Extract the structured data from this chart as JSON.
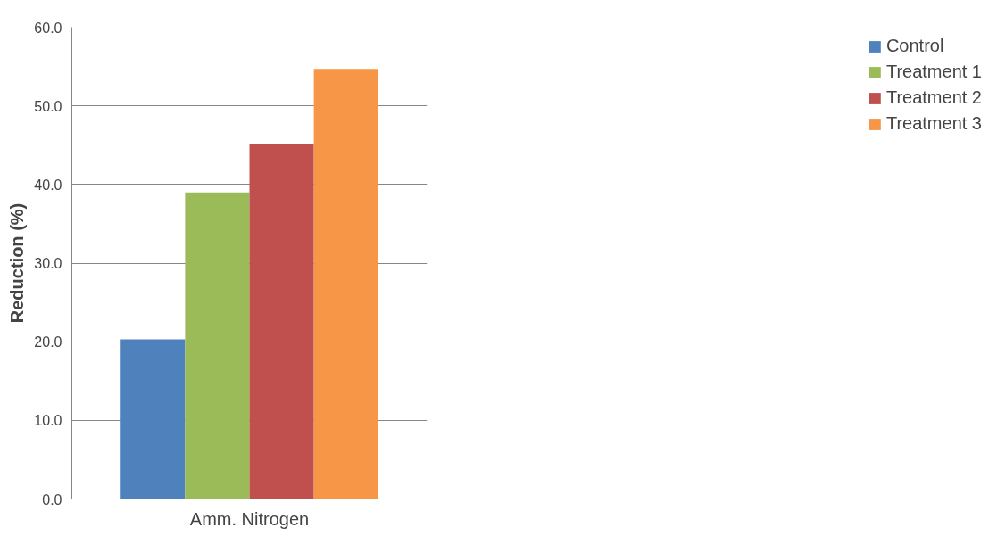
{
  "chart_data": {
    "type": "bar",
    "ylabel": "Reduction (%)",
    "categories": [
      "Amm. Nitrogen"
    ],
    "series": [
      {
        "name": "Control",
        "color": "#4f81bd",
        "values": [
          20.3
        ]
      },
      {
        "name": "Treatment 1",
        "color": "#9bbb59",
        "values": [
          39.0
        ]
      },
      {
        "name": "Treatment 2",
        "color": "#c0504d",
        "values": [
          45.2
        ]
      },
      {
        "name": "Treatment 3",
        "color": "#f79646",
        "values": [
          54.7
        ]
      }
    ],
    "ylim": [
      0,
      60
    ],
    "yticks": [
      {
        "value": 0,
        "label": "0.0"
      },
      {
        "value": 10,
        "label": "10.0"
      },
      {
        "value": 20,
        "label": "20.0"
      },
      {
        "value": 30,
        "label": "30.0"
      },
      {
        "value": 40,
        "label": "40.0"
      },
      {
        "value": 50,
        "label": "50.0"
      },
      {
        "value": 60,
        "label": "60.0"
      }
    ],
    "grid": "y",
    "legend": "right"
  }
}
